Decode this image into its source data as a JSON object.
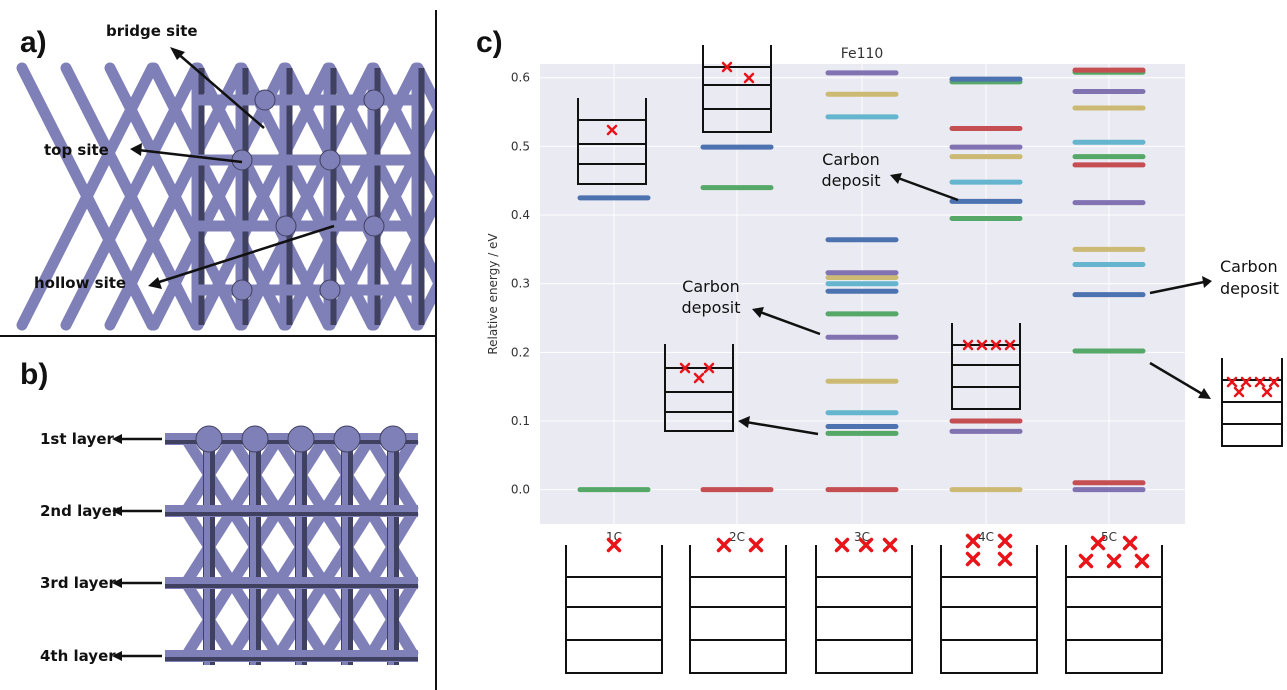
{
  "panels": {
    "a": {
      "label": "a)",
      "sites": [
        "bridge site",
        "top site",
        "hollow site"
      ]
    },
    "b": {
      "label": "b)",
      "layers": [
        "1st layer",
        "2nd layer",
        "3rd layer",
        "4th layer"
      ]
    },
    "c": {
      "label": "c)",
      "annotations": [
        "Carbon",
        "deposit",
        "Carbon",
        "deposit",
        "Carbon",
        "deposit",
        "Carbon",
        "deposit"
      ]
    }
  },
  "colors": {
    "atom": "#8080b8",
    "atom_dark": "#404060",
    "plot_bg": "#eaeaf2",
    "grid": "#ffffff",
    "marker": "#e8141a"
  },
  "chart_data": {
    "type": "energy-level",
    "title": "Fe110",
    "ylabel": "Relative energy / eV",
    "ylim": [
      -0.05,
      0.62
    ],
    "yticks": [
      "0.0",
      "0.1",
      "0.2",
      "0.3",
      "0.4",
      "0.5",
      "0.6"
    ],
    "grid": true,
    "categories": [
      "1C",
      "2C",
      "3C",
      "4C",
      "5C"
    ],
    "series": [
      {
        "category": "1C",
        "levels": [
          {
            "e": 0.0,
            "color": "#55a868"
          },
          {
            "e": 0.425,
            "color": "#4c72b0"
          }
        ]
      },
      {
        "category": "2C",
        "levels": [
          {
            "e": 0.0,
            "color": "#c44e52"
          },
          {
            "e": 0.44,
            "color": "#55a868"
          },
          {
            "e": 0.499,
            "color": "#4c72b0"
          }
        ]
      },
      {
        "category": "3C",
        "levels": [
          {
            "e": 0.0,
            "color": "#c44e52"
          },
          {
            "e": 0.082,
            "color": "#55a868"
          },
          {
            "e": 0.092,
            "color": "#4c72b0"
          },
          {
            "e": 0.112,
            "color": "#64b5cd"
          },
          {
            "e": 0.158,
            "color": "#ccb974"
          },
          {
            "e": 0.222,
            "color": "#8172b2"
          },
          {
            "e": 0.256,
            "color": "#55a868"
          },
          {
            "e": 0.289,
            "color": "#4c72b0"
          },
          {
            "e": 0.3,
            "color": "#64b5cd"
          },
          {
            "e": 0.309,
            "color": "#ccb974"
          },
          {
            "e": 0.316,
            "color": "#8172b2"
          },
          {
            "e": 0.364,
            "color": "#4c72b0"
          },
          {
            "e": 0.543,
            "color": "#64b5cd"
          },
          {
            "e": 0.576,
            "color": "#ccb974"
          },
          {
            "e": 0.607,
            "color": "#8172b2"
          }
        ]
      },
      {
        "category": "4C",
        "levels": [
          {
            "e": 0.0,
            "color": "#ccb974"
          },
          {
            "e": 0.085,
            "color": "#8172b2"
          },
          {
            "e": 0.1,
            "color": "#c44e52"
          },
          {
            "e": 0.395,
            "color": "#55a868"
          },
          {
            "e": 0.42,
            "color": "#4c72b0"
          },
          {
            "e": 0.448,
            "color": "#64b5cd"
          },
          {
            "e": 0.485,
            "color": "#ccb974"
          },
          {
            "e": 0.499,
            "color": "#8172b2"
          },
          {
            "e": 0.526,
            "color": "#c44e52"
          },
          {
            "e": 0.594,
            "color": "#55a868"
          },
          {
            "e": 0.598,
            "color": "#4c72b0"
          }
        ]
      },
      {
        "category": "5C",
        "levels": [
          {
            "e": 0.0,
            "color": "#8172b2"
          },
          {
            "e": 0.01,
            "color": "#c44e52"
          },
          {
            "e": 0.202,
            "color": "#55a868"
          },
          {
            "e": 0.284,
            "color": "#4c72b0"
          },
          {
            "e": 0.328,
            "color": "#64b5cd"
          },
          {
            "e": 0.35,
            "color": "#ccb974"
          },
          {
            "e": 0.418,
            "color": "#8172b2"
          },
          {
            "e": 0.473,
            "color": "#c44e52"
          },
          {
            "e": 0.485,
            "color": "#55a868"
          },
          {
            "e": 0.506,
            "color": "#64b5cd"
          },
          {
            "e": 0.556,
            "color": "#ccb974"
          },
          {
            "e": 0.58,
            "color": "#8172b2"
          },
          {
            "e": 0.608,
            "color": "#55a868"
          },
          {
            "e": 0.611,
            "color": "#c44e52"
          }
        ]
      }
    ]
  }
}
